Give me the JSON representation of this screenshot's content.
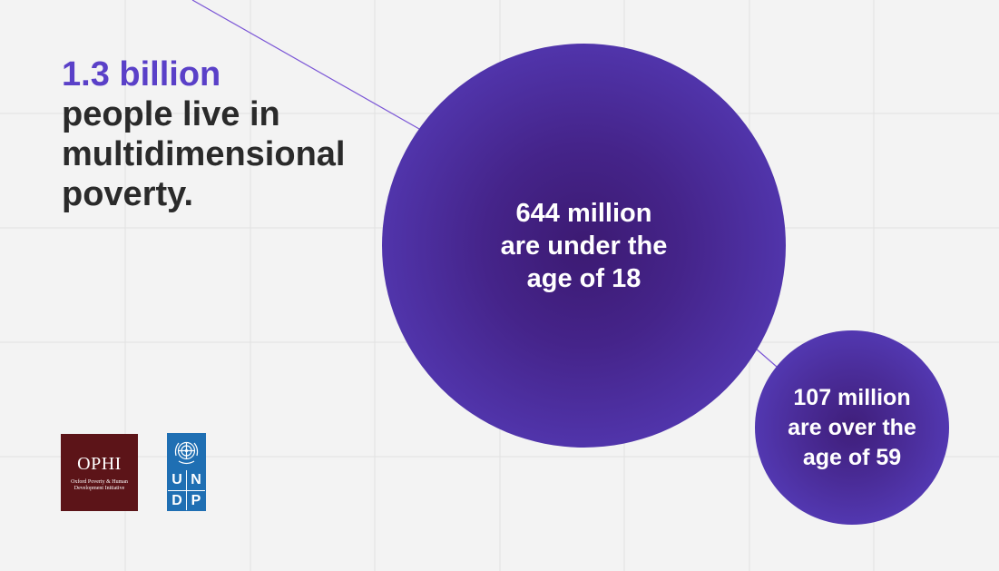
{
  "headline": {
    "accent": "1.3 billion",
    "rest_lines": [
      "people live in",
      "multidimensional",
      "poverty."
    ]
  },
  "bubbles": [
    {
      "lines": [
        "644 million",
        "are under the",
        "age of 18"
      ]
    },
    {
      "lines": [
        "107 million",
        "are over the",
        "age of 59"
      ]
    }
  ],
  "logos": {
    "ophi": {
      "name": "OPHI",
      "subtitle": "Oxford Poverty & Human Development Initiative"
    },
    "undp": {
      "letters": [
        "U",
        "N",
        "D",
        "P"
      ]
    }
  },
  "colors": {
    "background": "#f3f3f3",
    "accent": "#5a40c8",
    "bubble_edge": "#5a42c6",
    "bubble_core": "#3c1a72",
    "ophi_red": "#5c1418",
    "undp_blue": "#1f6fb3",
    "connector": "#7a55d6"
  }
}
